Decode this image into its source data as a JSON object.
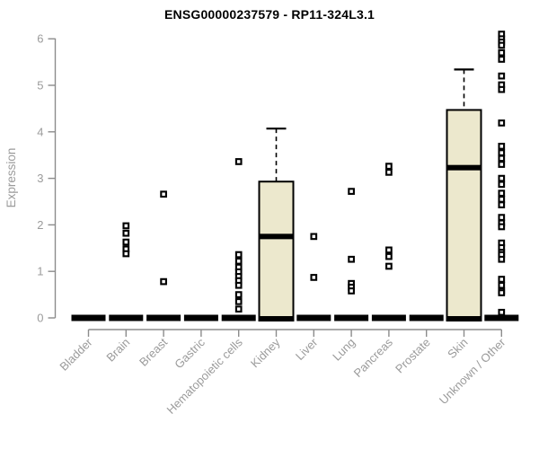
{
  "title": "ENSG00000237579 - RP11-324L3.1",
  "chart_data": {
    "type": "box",
    "title": "ENSG00000237579 - RP11-324L3.1",
    "ylabel": "Expression",
    "xlabel": "",
    "ylim": [
      0,
      6
    ],
    "yticks": [
      0,
      1,
      2,
      3,
      4,
      5,
      6
    ],
    "grid": false,
    "legend": null,
    "categories": [
      "Bladder",
      "Brain",
      "Breast",
      "Gastric",
      "Hematopoietic cells",
      "Kidney",
      "Liver",
      "Lung",
      "Pancreas",
      "Prostate",
      "Skin",
      "Unknown / Other"
    ],
    "series": [
      {
        "category": "Bladder",
        "q1": 0,
        "median": 0,
        "q3": 0,
        "whisker_low": 0,
        "whisker_high": 0,
        "outliers": []
      },
      {
        "category": "Brain",
        "q1": 0,
        "median": 0,
        "q3": 0,
        "whisker_low": 0,
        "whisker_high": 0,
        "outliers": [
          1.98,
          1.82,
          1.63,
          1.48,
          1.38
        ]
      },
      {
        "category": "Breast",
        "q1": 0,
        "median": 0,
        "q3": 0,
        "whisker_low": 0,
        "whisker_high": 0,
        "outliers": [
          2.66,
          0.78
        ]
      },
      {
        "category": "Gastric",
        "q1": 0,
        "median": 0,
        "q3": 0,
        "whisker_low": 0,
        "whisker_high": 0,
        "outliers": []
      },
      {
        "category": "Hematopoietic cells",
        "q1": 0,
        "median": 0,
        "q3": 0,
        "whisker_low": 0,
        "whisker_high": 0,
        "outliers": [
          3.36,
          1.36,
          1.22,
          1.09,
          0.99,
          0.89,
          0.8,
          0.7,
          0.5,
          0.35,
          0.19
        ]
      },
      {
        "category": "Kidney",
        "q1": 0,
        "median": 1.75,
        "q3": 2.93,
        "whisker_low": 0,
        "whisker_high": 4.07,
        "outliers": []
      },
      {
        "category": "Liver",
        "q1": 0,
        "median": 0,
        "q3": 0,
        "whisker_low": 0,
        "whisker_high": 0,
        "outliers": [
          1.75,
          0.87
        ]
      },
      {
        "category": "Lung",
        "q1": 0,
        "median": 0,
        "q3": 0,
        "whisker_low": 0,
        "whisker_high": 0,
        "outliers": [
          2.72,
          1.26,
          0.74,
          0.66,
          0.58
        ]
      },
      {
        "category": "Pancreas",
        "q1": 0,
        "median": 0,
        "q3": 0,
        "whisker_low": 0,
        "whisker_high": 0,
        "outliers": [
          3.26,
          3.13,
          1.46,
          1.32,
          1.11
        ]
      },
      {
        "category": "Prostate",
        "q1": 0,
        "median": 0,
        "q3": 0,
        "whisker_low": 0,
        "whisker_high": 0,
        "outliers": []
      },
      {
        "category": "Skin",
        "q1": 0,
        "median": 3.23,
        "q3": 4.47,
        "whisker_low": 0,
        "whisker_high": 5.34,
        "outliers": []
      },
      {
        "category": "Unknown / Other",
        "q1": 0,
        "median": 0,
        "q3": 0,
        "whisker_low": 0,
        "whisker_high": 0,
        "outliers": [
          6.1,
          6.0,
          5.93,
          5.86,
          5.7,
          5.56,
          5.2,
          5.01,
          4.91,
          4.19,
          3.69,
          3.55,
          3.43,
          3.3,
          3.0,
          2.87,
          2.68,
          2.55,
          2.43,
          2.16,
          2.04,
          1.96,
          1.61,
          1.51,
          1.41,
          1.36,
          1.26,
          0.83,
          0.7,
          0.58,
          0.54,
          0.12
        ]
      }
    ],
    "colors": {
      "box_fill": "#ece8cd",
      "box_stroke": "#000000",
      "median": "#000000",
      "outlier": "#000000",
      "axis": "#8c8c8c",
      "tick_label": "#9b9b9b",
      "title": "#000000"
    }
  }
}
